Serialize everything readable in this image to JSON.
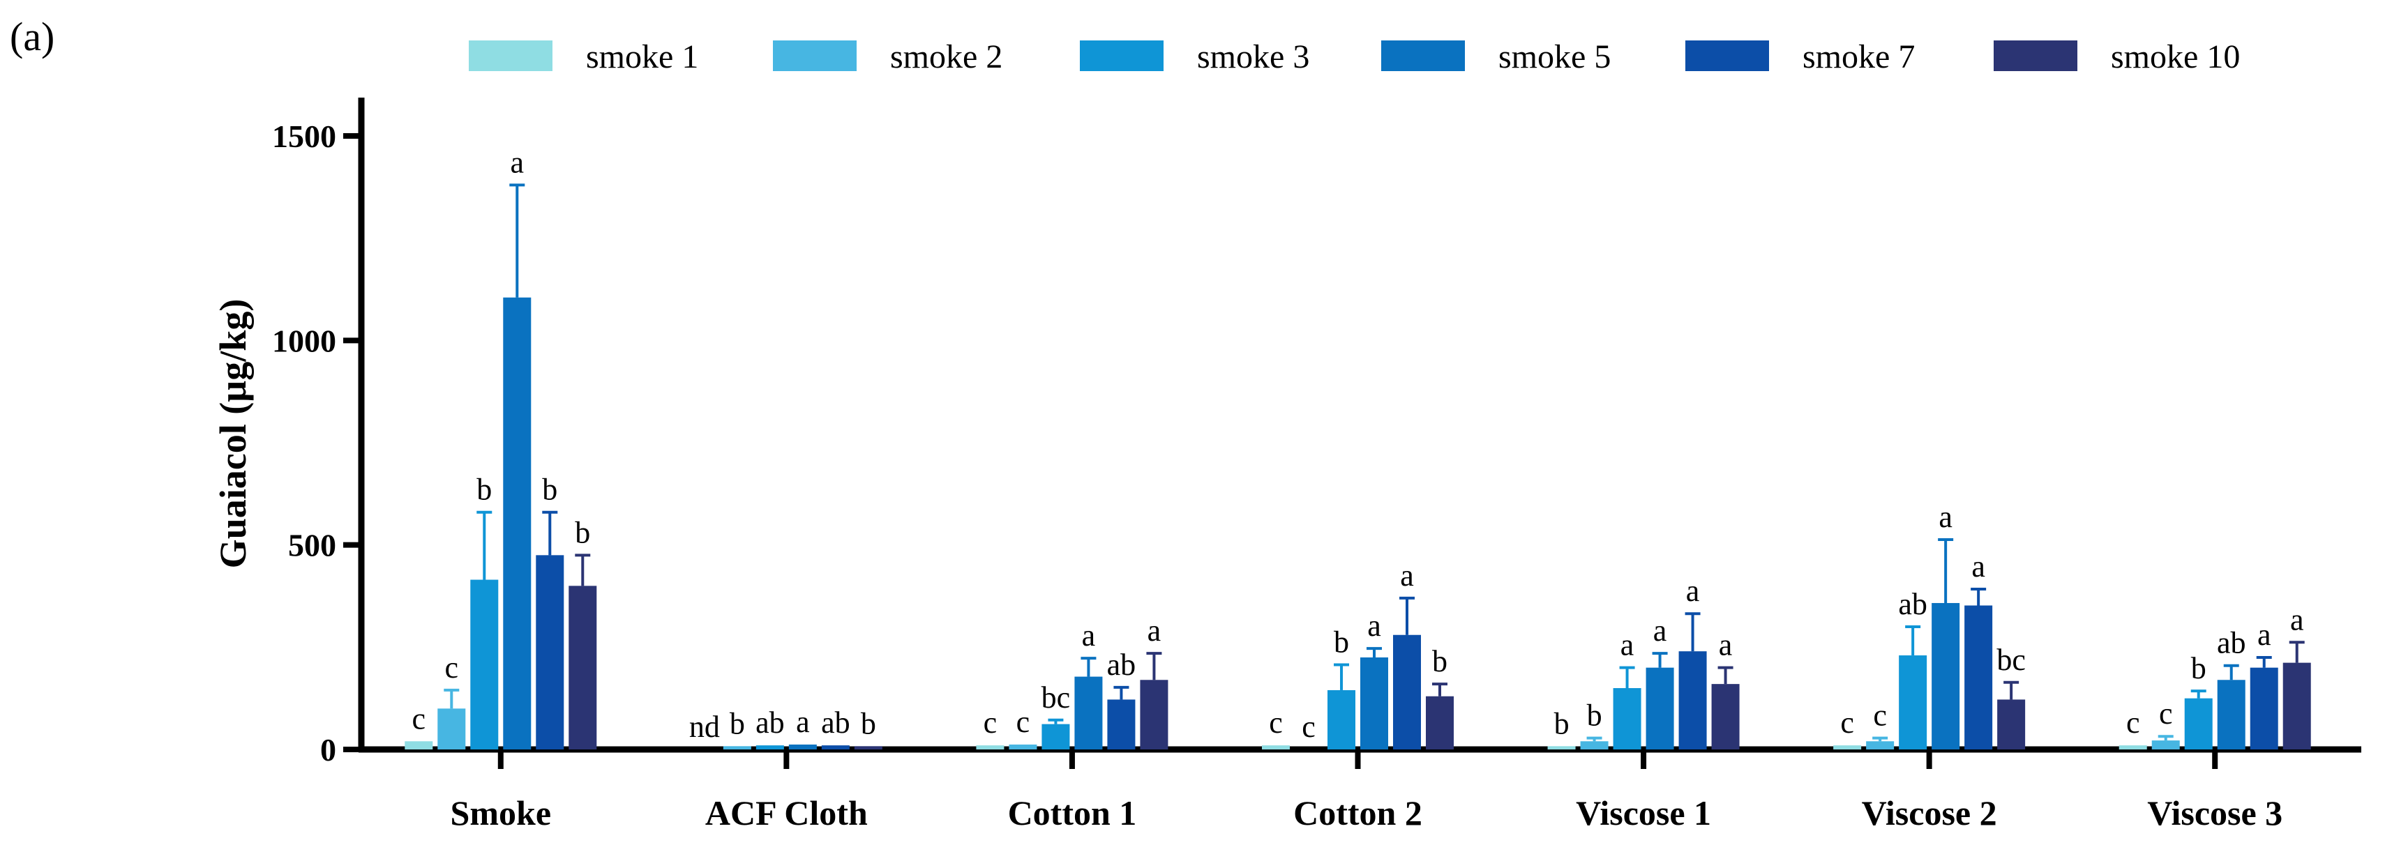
{
  "panel_label": "(a)",
  "chart_data": {
    "type": "bar",
    "ylabel": "Guaiacol (µg/kg)",
    "xlabel": "",
    "ylim": [
      0,
      1600
    ],
    "yticks": [
      0,
      500,
      1000,
      1500
    ],
    "legend_position": "top",
    "categories": [
      "Smoke",
      "ACF Cloth",
      "Cotton 1",
      "Cotton 2",
      "Viscose 1",
      "Viscose 2",
      "Viscose 3"
    ],
    "series": [
      {
        "name": "smoke 1",
        "color": "#8fdde3",
        "values": [
          20,
          0,
          10,
          10,
          8,
          10,
          10
        ],
        "errors": [
          0,
          0,
          0,
          0,
          0,
          0,
          0
        ],
        "labels": [
          "c",
          "nd",
          "c",
          "c",
          "b",
          "c",
          "c"
        ]
      },
      {
        "name": "smoke 2",
        "color": "#47b6e2",
        "values": [
          100,
          8,
          12,
          0,
          20,
          20,
          22
        ],
        "errors": [
          45,
          0,
          0,
          0,
          8,
          8,
          10
        ],
        "labels": [
          "c",
          "b",
          "c",
          "c",
          "b",
          "c",
          "c"
        ]
      },
      {
        "name": "smoke 3",
        "color": "#0f95d6",
        "values": [
          415,
          10,
          62,
          145,
          150,
          230,
          125
        ],
        "errors": [
          165,
          0,
          10,
          62,
          50,
          70,
          18
        ],
        "labels": [
          "b",
          "ab",
          "bc",
          "b",
          "a",
          "ab",
          "b"
        ]
      },
      {
        "name": "smoke 5",
        "color": "#0a72c0",
        "values": [
          1105,
          12,
          178,
          225,
          200,
          358,
          170
        ],
        "errors": [
          275,
          0,
          45,
          22,
          35,
          155,
          35
        ],
        "labels": [
          "a",
          "a",
          "a",
          "a",
          "a",
          "a",
          "ab"
        ]
      },
      {
        "name": "smoke 7",
        "color": "#0c4ea8",
        "values": [
          475,
          10,
          122,
          280,
          240,
          352,
          200
        ],
        "errors": [
          105,
          0,
          30,
          90,
          92,
          40,
          25
        ],
        "labels": [
          "b",
          "ab",
          "ab",
          "a",
          "a",
          "a",
          "a"
        ]
      },
      {
        "name": "smoke 10",
        "color": "#2b3473",
        "values": [
          400,
          8,
          170,
          130,
          160,
          122,
          212
        ],
        "errors": [
          75,
          0,
          65,
          30,
          40,
          42,
          50
        ],
        "labels": [
          "b",
          "b",
          "a",
          "b",
          "a",
          "bc",
          "a"
        ]
      }
    ]
  }
}
